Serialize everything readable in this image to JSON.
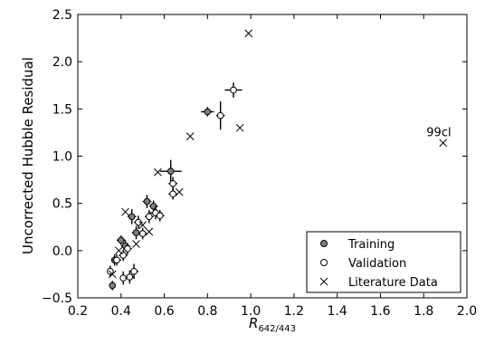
{
  "chart_data": {
    "type": "scatter",
    "title": "",
    "xlabel_main": "R",
    "xlabel_sub": "642/443",
    "ylabel": "Uncorrected Hubble Residual",
    "xlim": [
      0.2,
      2.0
    ],
    "ylim": [
      -0.5,
      2.5
    ],
    "xticks": [
      "0.2",
      "0.4",
      "0.6",
      "0.8",
      "1.0",
      "1.2",
      "1.4",
      "1.6",
      "1.8",
      "2.0"
    ],
    "yticks": [
      "−0.5",
      "0.0",
      "0.5",
      "1.0",
      "1.5",
      "2.0",
      "2.5"
    ],
    "grid": false,
    "legend_position": "lower-right",
    "annotations": [
      {
        "text": "99cl",
        "x": 1.87,
        "y": 1.21
      }
    ],
    "series": [
      {
        "name": "Training",
        "marker": "filled-circle",
        "color": "#808080",
        "points": [
          {
            "x": 0.36,
            "y": -0.37,
            "ex": 0.01,
            "ey": 0.05
          },
          {
            "x": 0.37,
            "y": -0.1,
            "ex": 0.01,
            "ey": 0.06
          },
          {
            "x": 0.4,
            "y": 0.11,
            "ex": 0.02,
            "ey": 0.05
          },
          {
            "x": 0.42,
            "y": 0.05,
            "ex": 0.02,
            "ey": 0.06
          },
          {
            "x": 0.45,
            "y": 0.36,
            "ex": 0.02,
            "ey": 0.08
          },
          {
            "x": 0.47,
            "y": 0.19,
            "ex": 0.02,
            "ey": 0.07
          },
          {
            "x": 0.52,
            "y": 0.52,
            "ex": 0.02,
            "ey": 0.07
          },
          {
            "x": 0.55,
            "y": 0.47,
            "ex": 0.02,
            "ey": 0.06
          },
          {
            "x": 0.63,
            "y": 0.84,
            "ex": 0.05,
            "ey": 0.12
          },
          {
            "x": 0.8,
            "y": 1.47,
            "ex": 0.03,
            "ey": 0.05
          }
        ]
      },
      {
        "name": "Validation",
        "marker": "open-circle",
        "color": "#ffffff",
        "points": [
          {
            "x": 0.35,
            "y": -0.22,
            "ex": 0.01,
            "ey": 0.06
          },
          {
            "x": 0.38,
            "y": -0.1,
            "ex": 0.02,
            "ey": 0.06
          },
          {
            "x": 0.41,
            "y": -0.05,
            "ex": 0.02,
            "ey": 0.06
          },
          {
            "x": 0.41,
            "y": -0.29,
            "ex": 0.01,
            "ey": 0.07
          },
          {
            "x": 0.43,
            "y": 0.02,
            "ex": 0.02,
            "ey": 0.06
          },
          {
            "x": 0.44,
            "y": -0.28,
            "ex": 0.02,
            "ey": 0.07
          },
          {
            "x": 0.46,
            "y": -0.22,
            "ex": 0.02,
            "ey": 0.08
          },
          {
            "x": 0.48,
            "y": 0.3,
            "ex": 0.02,
            "ey": 0.07
          },
          {
            "x": 0.5,
            "y": 0.18,
            "ex": 0.02,
            "ey": 0.06
          },
          {
            "x": 0.53,
            "y": 0.36,
            "ex": 0.02,
            "ey": 0.07
          },
          {
            "x": 0.56,
            "y": 0.4,
            "ex": 0.03,
            "ey": 0.07
          },
          {
            "x": 0.58,
            "y": 0.37,
            "ex": 0.02,
            "ey": 0.06
          },
          {
            "x": 0.64,
            "y": 0.6,
            "ex": 0.02,
            "ey": 0.06
          },
          {
            "x": 0.64,
            "y": 0.71,
            "ex": 0.02,
            "ey": 0.07
          },
          {
            "x": 0.86,
            "y": 1.43,
            "ex": 0.02,
            "ey": 0.15
          },
          {
            "x": 0.92,
            "y": 1.7,
            "ex": 0.04,
            "ey": 0.08
          }
        ]
      },
      {
        "name": "Literature Data",
        "marker": "x",
        "color": "#000000",
        "points": [
          {
            "x": 0.36,
            "y": -0.25
          },
          {
            "x": 0.39,
            "y": 0.0
          },
          {
            "x": 0.42,
            "y": 0.41
          },
          {
            "x": 0.47,
            "y": 0.07
          },
          {
            "x": 0.5,
            "y": 0.27
          },
          {
            "x": 0.53,
            "y": 0.2
          },
          {
            "x": 0.57,
            "y": 0.83
          },
          {
            "x": 0.67,
            "y": 0.62
          },
          {
            "x": 0.72,
            "y": 1.21
          },
          {
            "x": 0.95,
            "y": 1.3
          },
          {
            "x": 0.99,
            "y": 2.3
          },
          {
            "x": 1.89,
            "y": 1.14
          }
        ]
      }
    ]
  }
}
